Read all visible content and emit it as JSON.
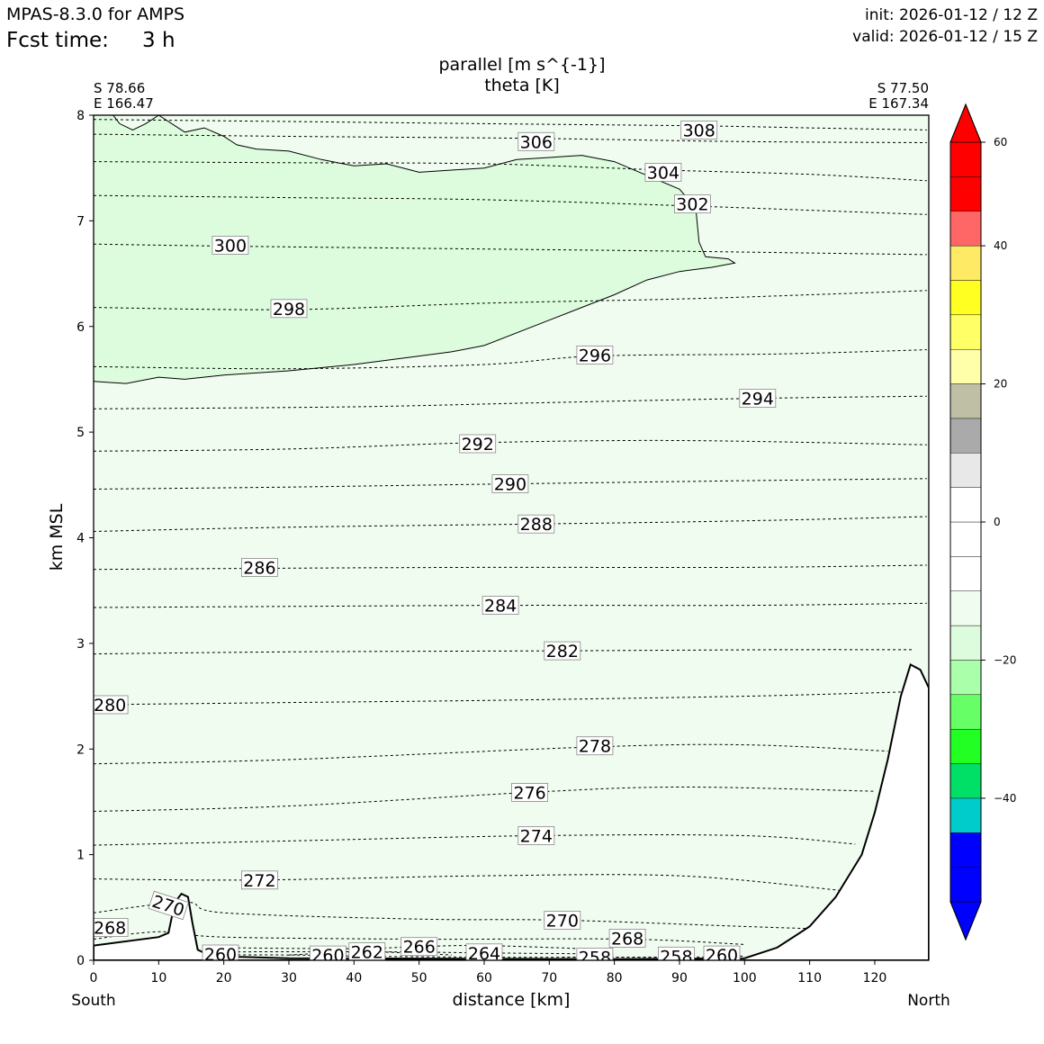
{
  "header": {
    "model": "MPAS-8.3.0 for AMPS",
    "fcst_label": "Fcst time:",
    "fcst_value": "3 h",
    "init": "init: 2026-01-12 / 12 Z",
    "valid": "valid: 2026-01-12 / 15 Z"
  },
  "chart_data": {
    "type": "contour_cross_section",
    "title_line1": "parallel [m s^{-1}]",
    "title_line2": "theta [K]",
    "xlabel": "distance [km]",
    "ylabel": "km MSL",
    "xlim": [
      0,
      128.3
    ],
    "ylim": [
      0,
      8
    ],
    "x_ticks": [
      0,
      10,
      20,
      30,
      40,
      50,
      60,
      70,
      80,
      90,
      100,
      110,
      120
    ],
    "y_ticks": [
      0,
      1,
      2,
      3,
      4,
      5,
      6,
      7,
      8
    ],
    "endpoints": {
      "left": {
        "lat": "S 78.66",
        "lon": "E 166.47",
        "dir": "South"
      },
      "right": {
        "lat": "S 77.50",
        "lon": "E 167.34",
        "dir": "North"
      }
    },
    "shading_colors": {
      "light_green": "#f0fcf0",
      "mid_green": "#ddfcdd"
    },
    "colorbar": {
      "range": [
        -60,
        60
      ],
      "ticks": [
        60,
        40,
        20,
        0,
        -20,
        -40
      ],
      "tick_labels": [
        "60",
        "40",
        "20",
        "0",
        "−20",
        "−40"
      ],
      "levels": [
        {
          "from": -55,
          "to": -50,
          "color": "#0000ff"
        },
        {
          "from": -50,
          "to": -45,
          "color": "#0000ff"
        },
        {
          "from": -45,
          "to": -40,
          "color": "#00cccc"
        },
        {
          "from": -40,
          "to": -35,
          "color": "#00e066"
        },
        {
          "from": -35,
          "to": -30,
          "color": "#22ff22"
        },
        {
          "from": -30,
          "to": -25,
          "color": "#66ff66"
        },
        {
          "from": -25,
          "to": -20,
          "color": "#aaffaa"
        },
        {
          "from": -20,
          "to": -15,
          "color": "#ddfcdd"
        },
        {
          "from": -15,
          "to": -10,
          "color": "#f0fcf0"
        },
        {
          "from": -10,
          "to": -5,
          "color": "#ffffff"
        },
        {
          "from": -5,
          "to": 0,
          "color": "#ffffff"
        },
        {
          "from": 0,
          "to": 5,
          "color": "#ffffff"
        },
        {
          "from": 5,
          "to": 10,
          "color": "#e8e8e8"
        },
        {
          "from": 10,
          "to": 15,
          "color": "#aaaaaa"
        },
        {
          "from": 15,
          "to": 20,
          "color": "#bfbfa6"
        },
        {
          "from": 20,
          "to": 25,
          "color": "#ffffaa"
        },
        {
          "from": 25,
          "to": 30,
          "color": "#ffff66"
        },
        {
          "from": 30,
          "to": 35,
          "color": "#ffff22"
        },
        {
          "from": 35,
          "to": 40,
          "color": "#ffea66"
        },
        {
          "from": 40,
          "to": 45,
          "color": "#ff6666"
        },
        {
          "from": 45,
          "to": 50,
          "color": "#ff0000"
        },
        {
          "from": 50,
          "to": 55,
          "color": "#ff0000"
        }
      ],
      "under_color": "#0000ff",
      "over_color": "#ff0000"
    },
    "theta_isolines": [
      {
        "value": 308,
        "label": "308",
        "points": [
          [
            0,
            7.96
          ],
          [
            30,
            7.94
          ],
          [
            60,
            7.92
          ],
          [
            92,
            7.9
          ],
          [
            110,
            7.88
          ],
          [
            128,
            7.86
          ]
        ],
        "label_x": 93,
        "label_y": 7.86
      },
      {
        "value": 306,
        "label": "306",
        "points": [
          [
            0,
            7.82
          ],
          [
            30,
            7.8
          ],
          [
            68,
            7.78
          ],
          [
            100,
            7.75
          ],
          [
            128,
            7.74
          ]
        ],
        "label_x": 68,
        "label_y": 7.75
      },
      {
        "value": 304,
        "label": "304",
        "points": [
          [
            0,
            7.56
          ],
          [
            30,
            7.55
          ],
          [
            60,
            7.54
          ],
          [
            88,
            7.48
          ],
          [
            110,
            7.44
          ],
          [
            128,
            7.38
          ]
        ],
        "label_x": 87.5,
        "label_y": 7.46
      },
      {
        "value": 302,
        "label": "302",
        "points": [
          [
            0,
            7.24
          ],
          [
            30,
            7.22
          ],
          [
            60,
            7.2
          ],
          [
            92,
            7.14
          ],
          [
            110,
            7.1
          ],
          [
            128,
            7.06
          ]
        ],
        "label_x": 92,
        "label_y": 7.16
      },
      {
        "value": 300,
        "label": "300",
        "points": [
          [
            0,
            6.78
          ],
          [
            21,
            6.76
          ],
          [
            50,
            6.74
          ],
          [
            80,
            6.72
          ],
          [
            105,
            6.7
          ],
          [
            128,
            6.68
          ]
        ],
        "label_x": 21,
        "label_y": 6.77
      },
      {
        "value": 298,
        "label": "298",
        "points": [
          [
            0,
            6.18
          ],
          [
            30,
            6.16
          ],
          [
            60,
            6.22
          ],
          [
            90,
            6.26
          ],
          [
            110,
            6.3
          ],
          [
            128,
            6.34
          ]
        ],
        "label_x": 30,
        "label_y": 6.17
      },
      {
        "value": 296,
        "label": "296",
        "points": [
          [
            0,
            5.62
          ],
          [
            30,
            5.6
          ],
          [
            60,
            5.64
          ],
          [
            77,
            5.72
          ],
          [
            105,
            5.74
          ],
          [
            128,
            5.78
          ]
        ],
        "label_x": 77,
        "label_y": 5.73
      },
      {
        "value": 294,
        "label": "294",
        "points": [
          [
            0,
            5.22
          ],
          [
            40,
            5.24
          ],
          [
            70,
            5.28
          ],
          [
            102,
            5.32
          ],
          [
            128,
            5.34
          ]
        ],
        "label_x": 102,
        "label_y": 5.32
      },
      {
        "value": 292,
        "label": "292",
        "points": [
          [
            0,
            4.82
          ],
          [
            30,
            4.84
          ],
          [
            59,
            4.9
          ],
          [
            90,
            4.92
          ],
          [
            128,
            4.88
          ]
        ],
        "label_x": 59,
        "label_y": 4.89
      },
      {
        "value": 290,
        "label": "290",
        "points": [
          [
            0,
            4.46
          ],
          [
            30,
            4.48
          ],
          [
            64,
            4.51
          ],
          [
            100,
            4.54
          ],
          [
            128,
            4.56
          ]
        ],
        "label_x": 64,
        "label_y": 4.51
      },
      {
        "value": 288,
        "label": "288",
        "points": [
          [
            0,
            4.06
          ],
          [
            30,
            4.1
          ],
          [
            68,
            4.13
          ],
          [
            100,
            4.16
          ],
          [
            128,
            4.2
          ]
        ],
        "label_x": 68,
        "label_y": 4.13
      },
      {
        "value": 286,
        "label": "286",
        "points": [
          [
            0,
            3.7
          ],
          [
            25,
            3.71
          ],
          [
            60,
            3.72
          ],
          [
            100,
            3.72
          ],
          [
            128,
            3.74
          ]
        ],
        "label_x": 25.5,
        "label_y": 3.72
      },
      {
        "value": 284,
        "label": "284",
        "points": [
          [
            0,
            3.34
          ],
          [
            30,
            3.35
          ],
          [
            63,
            3.36
          ],
          [
            100,
            3.36
          ],
          [
            128,
            3.38
          ]
        ],
        "label_x": 62.5,
        "label_y": 3.36
      },
      {
        "value": 282,
        "label": "282",
        "points": [
          [
            0,
            2.9
          ],
          [
            30,
            2.92
          ],
          [
            72,
            2.93
          ],
          [
            105,
            2.94
          ],
          [
            126,
            2.94
          ]
        ],
        "label_x": 72,
        "label_y": 2.93
      },
      {
        "value": 280,
        "label": "280",
        "points": [
          [
            0,
            2.42
          ],
          [
            30,
            2.44
          ],
          [
            60,
            2.46
          ],
          [
            100,
            2.5
          ],
          [
            124,
            2.54
          ]
        ],
        "label_x": 2.5,
        "label_y": 2.42
      },
      {
        "value": 278,
        "label": "278",
        "points": [
          [
            0,
            1.86
          ],
          [
            30,
            1.9
          ],
          [
            77,
            2.02
          ],
          [
            100,
            2.04
          ],
          [
            122,
            1.98
          ]
        ],
        "label_x": 77,
        "label_y": 2.03
      },
      {
        "value": 276,
        "label": "276",
        "points": [
          [
            0,
            1.41
          ],
          [
            30,
            1.46
          ],
          [
            67,
            1.59
          ],
          [
            90,
            1.64
          ],
          [
            120,
            1.6
          ]
        ],
        "label_x": 67,
        "label_y": 1.59
      },
      {
        "value": 274,
        "label": "274",
        "points": [
          [
            0,
            1.09
          ],
          [
            30,
            1.13
          ],
          [
            68,
            1.18
          ],
          [
            100,
            1.18
          ],
          [
            117,
            1.1
          ]
        ],
        "label_x": 68,
        "label_y": 1.18
      },
      {
        "value": 272,
        "label": "272",
        "points": [
          [
            0,
            0.77
          ],
          [
            25,
            0.76
          ],
          [
            60,
            0.8
          ],
          [
            90,
            0.8
          ],
          [
            115,
            0.66
          ]
        ],
        "label_x": 25.5,
        "label_y": 0.76
      },
      {
        "value": 270,
        "label": "270",
        "points": [
          [
            0,
            0.45
          ],
          [
            14,
            0.55
          ],
          [
            20,
            0.45
          ],
          [
            50,
            0.39
          ],
          [
            72,
            0.38
          ],
          [
            100,
            0.32
          ],
          [
            110,
            0.3
          ]
        ],
        "label_x": 72,
        "label_y": 0.38
      },
      {
        "value": 268,
        "label": "268",
        "points": [
          [
            0,
            0.2
          ],
          [
            10,
            0.27
          ],
          [
            20,
            0.22
          ],
          [
            50,
            0.2
          ],
          [
            82,
            0.2
          ],
          [
            100,
            0.15
          ]
        ],
        "label_x": 82,
        "label_y": 0.21
      },
      {
        "value": 266,
        "label": "266",
        "points": [
          [
            18,
            0.12
          ],
          [
            40,
            0.11
          ],
          [
            50,
            0.13
          ],
          [
            60,
            0.14
          ],
          [
            75,
            0.11
          ]
        ],
        "label_x": 50,
        "label_y": 0.13
      },
      {
        "value": 264,
        "label": "264",
        "points": [
          [
            18,
            0.08
          ],
          [
            45,
            0.08
          ],
          [
            60,
            0.07
          ],
          [
            80,
            0.06
          ]
        ],
        "label_x": 60,
        "label_y": 0.07
      },
      {
        "value": 262,
        "label": "262",
        "points": [
          [
            30,
            0.05
          ],
          [
            42,
            0.08
          ],
          [
            55,
            0.05
          ]
        ],
        "label_x": 42,
        "label_y": 0.08
      },
      {
        "value": 260,
        "label": "260",
        "points": [
          [
            18,
            0.05
          ],
          [
            30,
            0.05
          ],
          [
            40,
            0.04
          ],
          [
            60,
            0.03
          ],
          [
            90,
            0.03
          ],
          [
            100,
            0.04
          ]
        ],
        "label_x": 36,
        "label_y": 0.05
      },
      {
        "value": 258,
        "label": "258",
        "points": [
          [
            72,
            0.03
          ],
          [
            80,
            0.03
          ],
          [
            92,
            0.03
          ]
        ],
        "label_x": 77,
        "label_y": 0.03
      }
    ],
    "extra_labels": [
      {
        "label": "270",
        "x": 11.5,
        "y": 0.52,
        "rotate": 18
      },
      {
        "label": "268",
        "x": 2.5,
        "y": 0.31,
        "rotate": 0
      },
      {
        "label": "260",
        "x": 19.5,
        "y": 0.06,
        "rotate": 0
      },
      {
        "label": "258",
        "x": 89.5,
        "y": 0.04,
        "rotate": 0
      },
      {
        "label": "260",
        "x": 96.5,
        "y": 0.05,
        "rotate": 0
      }
    ],
    "wind_region_boundary": [
      [
        0,
        5.48
      ],
      [
        5,
        5.46
      ],
      [
        10,
        5.52
      ],
      [
        14,
        5.5
      ],
      [
        20,
        5.54
      ],
      [
        30,
        5.58
      ],
      [
        40,
        5.64
      ],
      [
        50,
        5.72
      ],
      [
        55,
        5.76
      ],
      [
        60,
        5.82
      ],
      [
        70,
        6.06
      ],
      [
        80,
        6.3
      ],
      [
        85,
        6.44
      ],
      [
        90,
        6.52
      ],
      [
        95,
        6.56
      ],
      [
        98.5,
        6.6
      ],
      [
        97.5,
        6.64
      ],
      [
        94,
        6.66
      ],
      [
        93,
        6.8
      ],
      [
        92.5,
        7.12
      ],
      [
        90,
        7.3
      ],
      [
        85,
        7.43
      ],
      [
        80,
        7.56
      ],
      [
        75,
        7.62
      ],
      [
        70,
        7.6
      ],
      [
        65,
        7.58
      ],
      [
        60,
        7.5
      ],
      [
        55,
        7.48
      ],
      [
        50,
        7.46
      ],
      [
        45,
        7.54
      ],
      [
        40,
        7.52
      ],
      [
        35,
        7.58
      ],
      [
        30,
        7.66
      ],
      [
        25,
        7.68
      ],
      [
        22,
        7.72
      ],
      [
        20,
        7.8
      ],
      [
        17,
        7.88
      ],
      [
        14,
        7.84
      ],
      [
        10,
        8
      ],
      [
        8,
        7.92
      ],
      [
        6,
        7.86
      ],
      [
        4,
        7.92
      ],
      [
        3,
        8
      ],
      [
        0,
        8
      ]
    ],
    "terrain": [
      [
        0,
        0.14
      ],
      [
        10,
        0.22
      ],
      [
        11.5,
        0.26
      ],
      [
        12.5,
        0.55
      ],
      [
        13.5,
        0.63
      ],
      [
        14.5,
        0.6
      ],
      [
        15.2,
        0.35
      ],
      [
        16,
        0.1
      ],
      [
        18,
        0.04
      ],
      [
        30,
        0.02
      ],
      [
        80,
        0.01
      ],
      [
        100,
        0.02
      ],
      [
        105,
        0.12
      ],
      [
        110,
        0.32
      ],
      [
        114,
        0.6
      ],
      [
        118,
        1.0
      ],
      [
        120,
        1.4
      ],
      [
        122,
        1.9
      ],
      [
        124,
        2.5
      ],
      [
        125.5,
        2.8
      ],
      [
        127,
        2.75
      ],
      [
        128.3,
        2.58
      ],
      [
        128.3,
        0
      ],
      [
        0,
        0
      ]
    ]
  }
}
